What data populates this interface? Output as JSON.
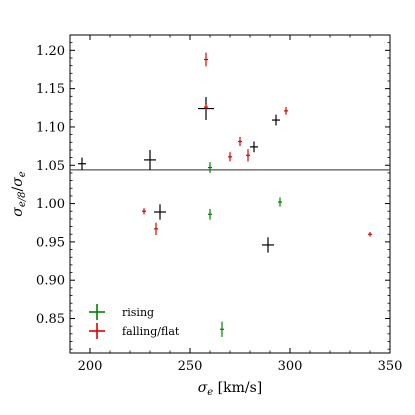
{
  "chart_data": {
    "type": "scatter",
    "xlabel": "σe [km/s]",
    "ylabel": "σe/8/σe",
    "xlim": [
      190,
      350
    ],
    "ylim": [
      0.805,
      1.22
    ],
    "x_ticks": [
      200,
      250,
      300,
      350
    ],
    "y_ticks": [
      0.85,
      0.9,
      0.95,
      1.0,
      1.05,
      1.1,
      1.15,
      1.2
    ],
    "reference_line": {
      "y": 1.044
    },
    "legend_position": "bottom-left",
    "series": [
      {
        "name": "",
        "color": "#000000",
        "points": [
          {
            "x": 196,
            "y": 1.052,
            "xerr": 2,
            "yerr": 0.008
          },
          {
            "x": 230,
            "y": 1.057,
            "xerr": 3,
            "yerr": 0.013
          },
          {
            "x": 235,
            "y": 0.989,
            "xerr": 3,
            "yerr": 0.01
          },
          {
            "x": 258,
            "y": 1.124,
            "xerr": 4,
            "yerr": 0.015
          },
          {
            "x": 282,
            "y": 1.074,
            "xerr": 2,
            "yerr": 0.007
          },
          {
            "x": 289,
            "y": 0.946,
            "xerr": 3,
            "yerr": 0.01
          },
          {
            "x": 293,
            "y": 1.109,
            "xerr": 2,
            "yerr": 0.007
          }
        ]
      },
      {
        "name": "rising",
        "color": "#008000",
        "points": [
          {
            "x": 260,
            "y": 1.047,
            "xerr": 1,
            "yerr": 0.007
          },
          {
            "x": 260,
            "y": 0.986,
            "xerr": 1,
            "yerr": 0.007
          },
          {
            "x": 266,
            "y": 0.836,
            "xerr": 1,
            "yerr": 0.01
          },
          {
            "x": 295,
            "y": 1.002,
            "xerr": 1,
            "yerr": 0.006
          }
        ]
      },
      {
        "name": "falling/flat",
        "color": "#e00000",
        "points": [
          {
            "x": 227,
            "y": 0.99,
            "xerr": 1,
            "yerr": 0.004
          },
          {
            "x": 233,
            "y": 0.967,
            "xerr": 1,
            "yerr": 0.008
          },
          {
            "x": 258,
            "y": 1.188,
            "xerr": 1,
            "yerr": 0.009
          },
          {
            "x": 258,
            "y": 1.126,
            "xerr": 1,
            "yerr": 0.004
          },
          {
            "x": 270,
            "y": 1.061,
            "xerr": 1,
            "yerr": 0.006
          },
          {
            "x": 275,
            "y": 1.081,
            "xerr": 1,
            "yerr": 0.006
          },
          {
            "x": 279,
            "y": 1.063,
            "xerr": 1,
            "yerr": 0.008
          },
          {
            "x": 298,
            "y": 1.121,
            "xerr": 1,
            "yerr": 0.005
          },
          {
            "x": 340,
            "y": 0.96,
            "xerr": 1,
            "yerr": 0.003
          }
        ]
      }
    ]
  }
}
